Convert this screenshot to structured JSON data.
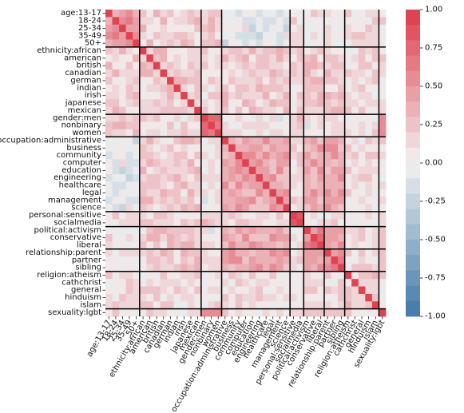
{
  "chart_data": {
    "type": "heatmap",
    "title": "",
    "xlabel": "",
    "ylabel": "",
    "labels": [
      "age:13-17",
      "18-24",
      "25-34",
      "35-49",
      "50+",
      "ethnicity:african",
      "american",
      "british",
      "canadian",
      "german",
      "indian",
      "irish",
      "japanese",
      "mexican",
      "gender:men",
      "nonbinary",
      "women",
      "occupation:administrative",
      "business",
      "community",
      "computer",
      "education",
      "engineering",
      "healthcare",
      "legal",
      "management",
      "science",
      "personal:sensitive",
      "socialmedia",
      "political:activism",
      "conservative",
      "liberal",
      "relationship:parent",
      "partner",
      "sibling",
      "religion:atheism",
      "cathchrist",
      "general",
      "hinduism",
      "islam",
      "sexuality:lgbt"
    ],
    "x_ticks": [
      "age:13-17",
      "18-24",
      "25-34",
      "35-49",
      "50+",
      "ethnicity:african",
      "american",
      "british",
      "canadian",
      "german",
      "indian",
      "irish",
      "japanese",
      "mexican",
      "gender:men",
      "nonbinary",
      "women",
      "occupation:administrative",
      "business",
      "community",
      "computer",
      "education",
      "engineering",
      "healthcare",
      "legal",
      "management",
      "science",
      "personal:sensitive",
      "socialmedia",
      "political:activism",
      "conservative",
      "liberal",
      "relationship:parent",
      "partner",
      "sibling",
      "religion:atheism",
      "cathchrist",
      "general",
      "hinduism",
      "islam",
      "sexuality:lgbt"
    ],
    "groups": [
      {
        "name": "age",
        "start": 0,
        "end": 4
      },
      {
        "name": "ethnicity",
        "start": 5,
        "end": 13
      },
      {
        "name": "gender",
        "start": 14,
        "end": 16
      },
      {
        "name": "occupation",
        "start": 17,
        "end": 26
      },
      {
        "name": "personal",
        "start": 27,
        "end": 28
      },
      {
        "name": "political",
        "start": 29,
        "end": 31
      },
      {
        "name": "relationship",
        "start": 32,
        "end": 34
      },
      {
        "name": "religion",
        "start": 35,
        "end": 39
      },
      {
        "name": "sexuality",
        "start": 40,
        "end": 40
      }
    ],
    "cluster_means": [
      [
        0.45,
        0.18,
        0.25,
        -0.05,
        0.08,
        0.05,
        0.08,
        0.12,
        0.12
      ],
      [
        0.18,
        0.18,
        0.15,
        0.22,
        0.12,
        0.22,
        0.22,
        0.12,
        0.15
      ],
      [
        0.25,
        0.15,
        0.7,
        0.05,
        0.22,
        0.05,
        0.08,
        0.08,
        0.65
      ],
      [
        -0.05,
        0.22,
        0.05,
        0.42,
        0.18,
        0.35,
        0.4,
        0.12,
        0.15
      ],
      [
        0.08,
        0.12,
        0.22,
        0.18,
        0.7,
        0.08,
        0.12,
        0.05,
        0.12
      ],
      [
        0.05,
        0.22,
        0.05,
        0.35,
        0.08,
        0.6,
        0.45,
        0.12,
        0.15
      ],
      [
        0.08,
        0.22,
        0.08,
        0.4,
        0.12,
        0.45,
        0.62,
        0.12,
        0.15
      ],
      [
        0.12,
        0.12,
        0.08,
        0.12,
        0.05,
        0.12,
        0.12,
        0.25,
        0.08
      ],
      [
        0.12,
        0.15,
        0.65,
        0.15,
        0.12,
        0.15,
        0.15,
        0.08,
        1.0
      ]
    ],
    "colorbar": {
      "min": -1.0,
      "max": 1.0,
      "ticks": [
        "1.00",
        "0.75",
        "0.50",
        "0.25",
        "0.00",
        "-0.25",
        "-0.50",
        "-0.75",
        "-1.00"
      ],
      "tick_values": [
        1.0,
        0.75,
        0.5,
        0.25,
        0.0,
        -0.25,
        -0.5,
        -0.75,
        -1.0
      ],
      "levels": 20,
      "low_color": "#3e78a8",
      "mid_color": "#f2f1f1",
      "high_color": "#de3a4a"
    },
    "grid_lines": true,
    "diagonal": 1.0
  }
}
